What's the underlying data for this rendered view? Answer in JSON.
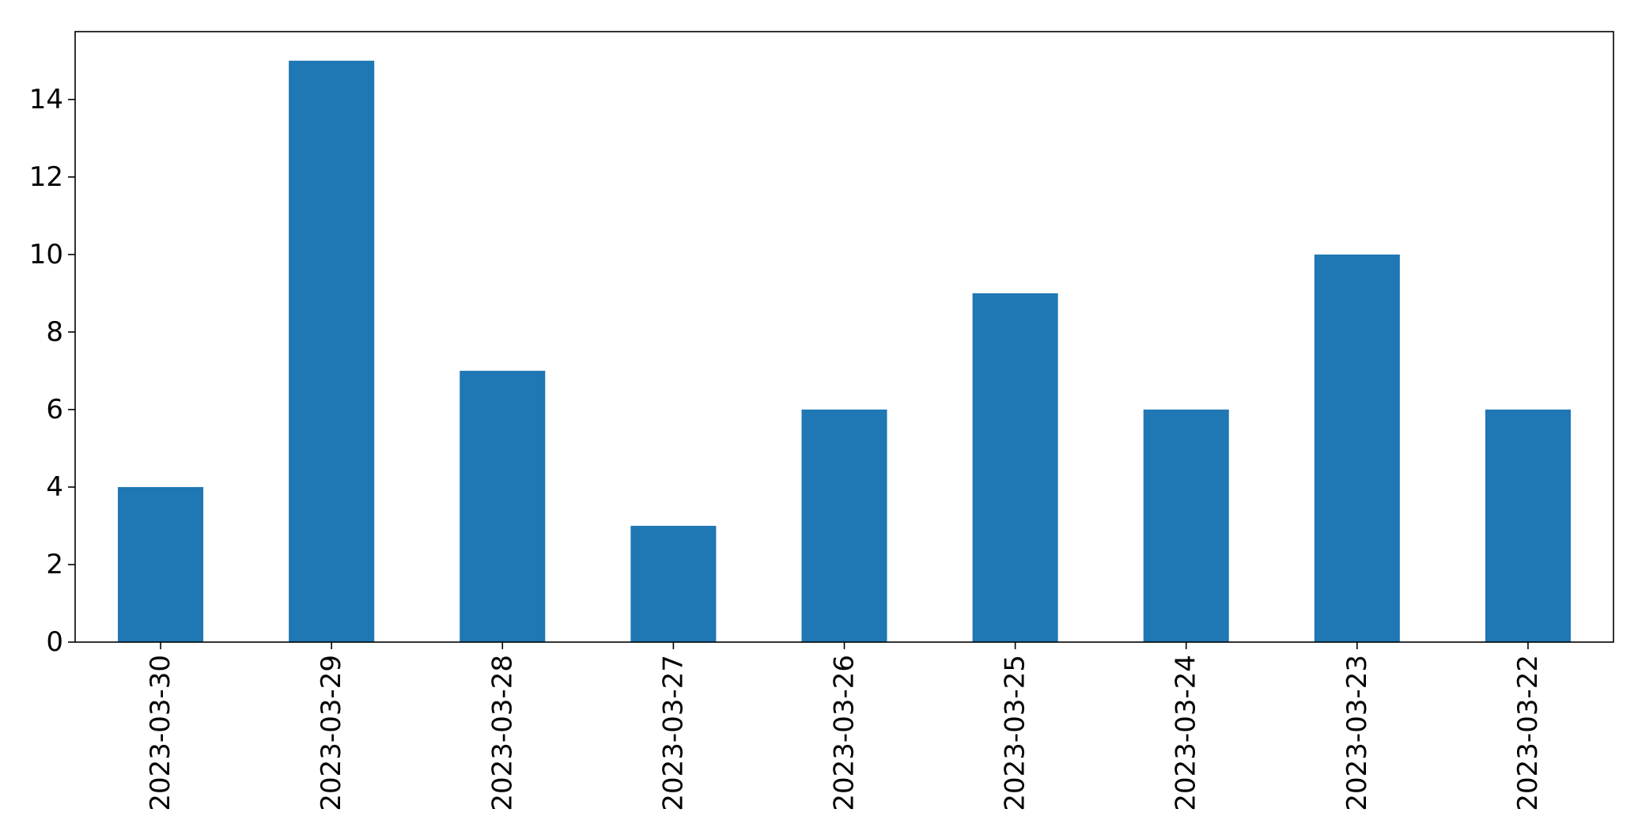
{
  "chart_data": {
    "type": "bar",
    "title": "",
    "xlabel": "",
    "ylabel": "",
    "categories": [
      "2023-03-30",
      "2023-03-29",
      "2023-03-28",
      "2023-03-27",
      "2023-03-26",
      "2023-03-25",
      "2023-03-24",
      "2023-03-23",
      "2023-03-22"
    ],
    "series": [
      {
        "values": [
          4,
          15,
          7,
          3,
          6,
          9,
          6,
          10,
          6
        ],
        "color": "#1f77b4"
      }
    ],
    "ylim": [
      0,
      15.75
    ],
    "yticks": [
      0,
      2,
      4,
      6,
      8,
      10,
      12,
      14
    ],
    "ytick_labels": [
      "0",
      "2",
      "4",
      "6",
      "8",
      "10",
      "12",
      "14"
    ],
    "xtick_rotation": "vertical",
    "grid": false,
    "legend": "none"
  }
}
